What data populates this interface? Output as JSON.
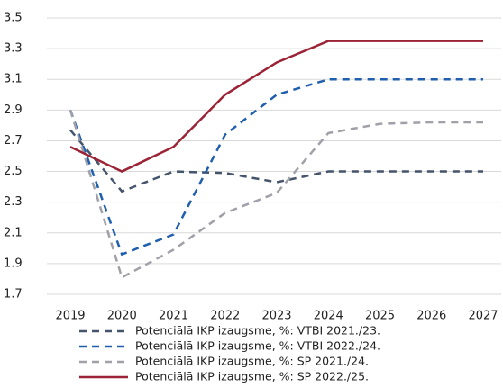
{
  "chart_data": {
    "type": "line",
    "categories": [
      "2019",
      "2020",
      "2021",
      "2022",
      "2023",
      "2024",
      "2025",
      "2026",
      "2027"
    ],
    "series": [
      {
        "name": "Potenciālā IKP izaugsme, %: VTBI 2021./23.",
        "color": "#44546a",
        "dash": true,
        "values": [
          2.77,
          2.37,
          2.5,
          2.49,
          2.43,
          2.5,
          2.5,
          2.5,
          2.5
        ]
      },
      {
        "name": "Potenciālā IKP izaugsme, %: VTBI 2022./24.",
        "color": "#1f5fad",
        "dash": true,
        "values": [
          2.9,
          1.96,
          2.09,
          2.74,
          3.0,
          3.1,
          3.1,
          3.1,
          3.1
        ]
      },
      {
        "name": "Potenciālā IKP izaugsme, %: SP 2021./24.",
        "color": "#a0a0a8",
        "dash": true,
        "values": [
          2.9,
          1.81,
          1.99,
          2.23,
          2.36,
          2.75,
          2.81,
          2.82,
          2.82
        ]
      },
      {
        "name": "Potenciālā IKP izaugsme, %: SP 2022./25.",
        "color": "#9b2335",
        "dash": false,
        "values": [
          2.66,
          2.5,
          2.66,
          3.0,
          3.21,
          3.35,
          3.35,
          3.35,
          3.35
        ]
      }
    ],
    "ylim": [
      1.7,
      3.5
    ],
    "yticks": [
      1.7,
      1.9,
      2.1,
      2.3,
      2.5,
      2.7,
      2.9,
      3.1,
      3.3,
      3.5
    ],
    "grid": true
  }
}
